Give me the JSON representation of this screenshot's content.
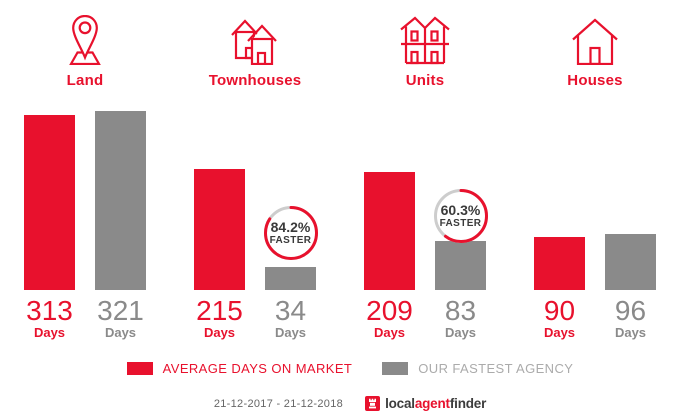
{
  "colors": {
    "red": "#E8112D",
    "bar_gray": "#8A8A8A",
    "ring_gray": "#CDCDCD",
    "badge_text": "#3A3A3A",
    "muted_gray": "#ABABAB",
    "date_gray": "#666666",
    "brand_dark": "#3C3C3C"
  },
  "chart_data": {
    "type": "bar",
    "categories": [
      "Land",
      "Townhouses",
      "Units",
      "Houses"
    ],
    "series": [
      {
        "name": "AVERAGE DAYS ON MARKET",
        "color": "#E8112D",
        "values": [
          313,
          215,
          209,
          90
        ]
      },
      {
        "name": "OUR FASTEST AGENCY",
        "color": "#8A8A8A",
        "values": [
          321,
          34,
          83,
          96
        ]
      }
    ],
    "value_unit": "Days",
    "annotations": [
      {
        "category": "Townhouses",
        "text": "84.2% FASTER",
        "percent": 84.2
      },
      {
        "category": "Units",
        "text": "60.3% FASTER",
        "percent": 60.3
      }
    ],
    "ylim": [
      0,
      330
    ],
    "grid": false,
    "legend_position": "bottom",
    "date_range": "21-12-2017 - 21-12-2018"
  },
  "groups": [
    {
      "label": "Land",
      "icon": "land-pin-icon",
      "avg_days": 313,
      "fastest_days": 321,
      "badge": null
    },
    {
      "label": "Townhouses",
      "icon": "townhouses-icon",
      "avg_days": 215,
      "fastest_days": 34,
      "badge": {
        "percent_label": "84.2%",
        "faster_label": "FASTER",
        "percent": 84.2
      }
    },
    {
      "label": "Units",
      "icon": "units-icon",
      "avg_days": 209,
      "fastest_days": 83,
      "badge": {
        "percent_label": "60.3%",
        "faster_label": "FASTER",
        "percent": 60.3
      }
    },
    {
      "label": "Houses",
      "icon": "house-icon",
      "avg_days": 90,
      "fastest_days": 96,
      "badge": null
    }
  ],
  "days_label": "Days",
  "legend": {
    "average_label": "AVERAGE DAYS ON MARKET",
    "fastest_label": "OUR FASTEST AGENCY"
  },
  "footer": {
    "date_range": "21-12-2017 - 21-12-2018",
    "brand": {
      "part1": "local",
      "part2": "agent",
      "part3": "finder"
    }
  }
}
